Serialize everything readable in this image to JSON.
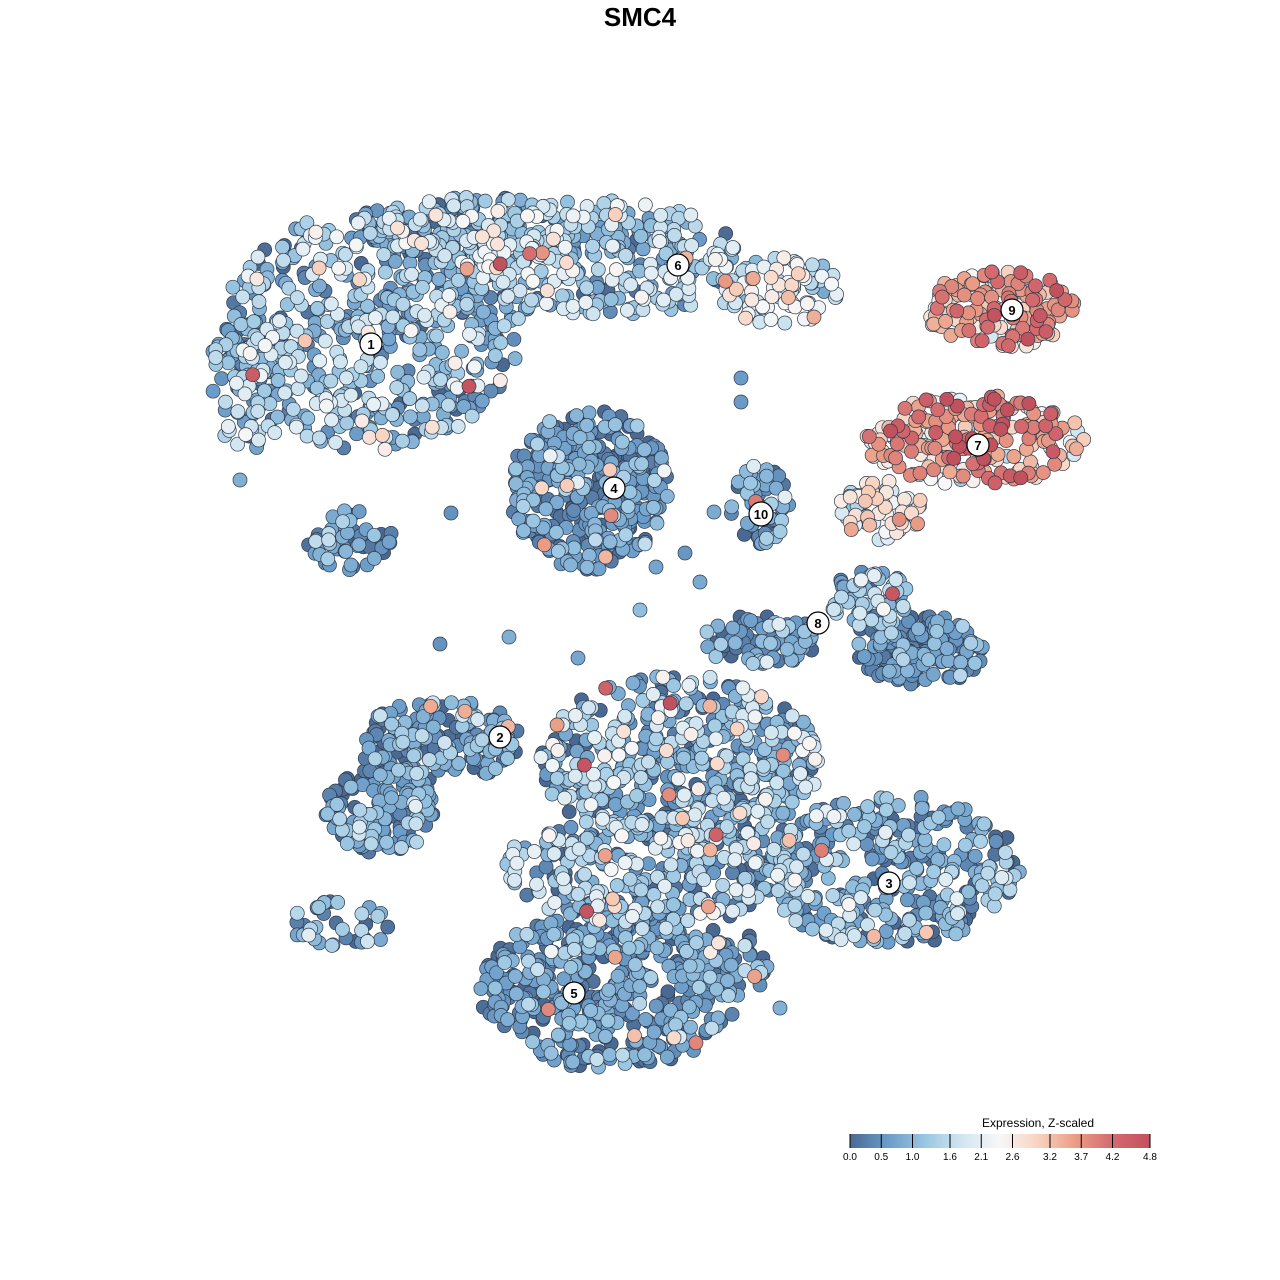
{
  "chart_data": {
    "type": "scatter",
    "title": "SMC4",
    "xlabel": "",
    "ylabel": "",
    "grid": false,
    "legend": {
      "title": "Expression, Z-scaled",
      "placement": "bottom-right",
      "ticks": [
        "0.0",
        "0.5",
        "1.0",
        "1.6",
        "2.1",
        "2.6",
        "3.2",
        "3.7",
        "4.2",
        "4.8"
      ],
      "range": [
        0.0,
        4.8
      ]
    },
    "color_scale": [
      "#4a6992",
      "#6b9bc8",
      "#9ac6e2",
      "#d2e6f1",
      "#f7f7f7",
      "#f9d3c0",
      "#ea9e86",
      "#d46a6e",
      "#c2515e"
    ],
    "clusters": [
      {
        "label": "1",
        "center": [
          0,
          0
        ],
        "mean_expression": 1.1
      },
      {
        "label": "2",
        "center": [
          0,
          0
        ],
        "mean_expression": 0.6
      },
      {
        "label": "3",
        "center": [
          0,
          0
        ],
        "mean_expression": 0.9
      },
      {
        "label": "4",
        "center": [
          0,
          0
        ],
        "mean_expression": 0.6
      },
      {
        "label": "5",
        "center": [
          0,
          0
        ],
        "mean_expression": 0.5
      },
      {
        "label": "6",
        "center": [
          0,
          0
        ],
        "mean_expression": 1.3
      },
      {
        "label": "7",
        "center": [
          0,
          0
        ],
        "mean_expression": 3.5
      },
      {
        "label": "8",
        "center": [
          0,
          0
        ],
        "mean_expression": 0.6
      },
      {
        "label": "9",
        "center": [
          0,
          0
        ],
        "mean_expression": 3.6
      },
      {
        "label": "10",
        "center": [
          0,
          0
        ],
        "mean_expression": 0.7
      }
    ]
  }
}
